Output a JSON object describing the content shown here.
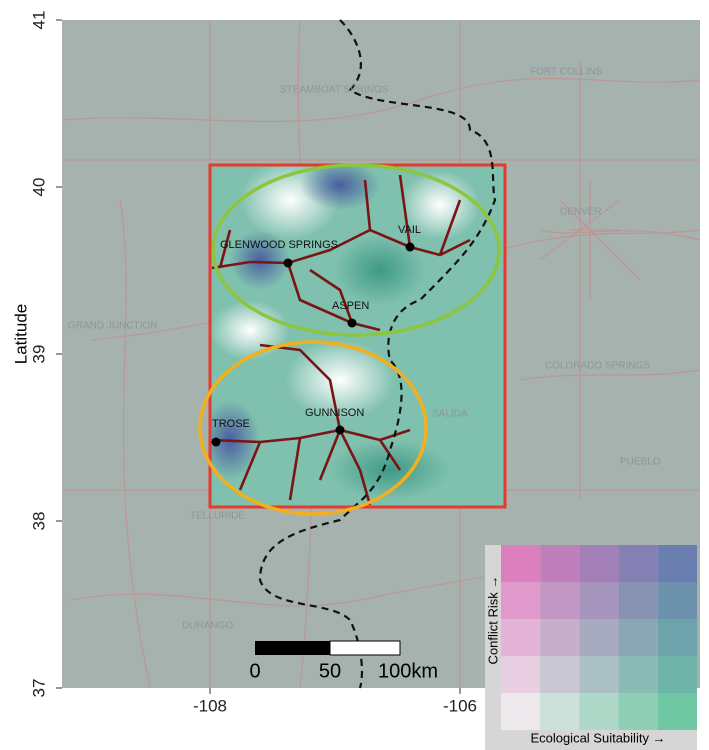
{
  "axes": {
    "y_label": "Latitude",
    "y_ticks": [
      41,
      40,
      39,
      38,
      37
    ],
    "x_ticks": [
      -108,
      -106
    ]
  },
  "cities": {
    "highlighted": [
      "GLENWOOD SPRINGS",
      "VAIL",
      "ASPEN",
      "TROSE",
      "GUNNISON"
    ],
    "background": [
      "STEAMBOAT SPRINGS",
      "FORT COLLINS",
      "DENVER",
      "GRAND JUNCTION",
      "COLORADO SPRINGS",
      "SALIDA",
      "PUEBLO",
      "TELLURIDE",
      "DURANGO"
    ]
  },
  "scale_bar": {
    "labels": [
      "0",
      "50",
      "100km"
    ]
  },
  "legend": {
    "y_label": "Conflict Risk →",
    "x_label": "Ecological Suitability →"
  }
}
